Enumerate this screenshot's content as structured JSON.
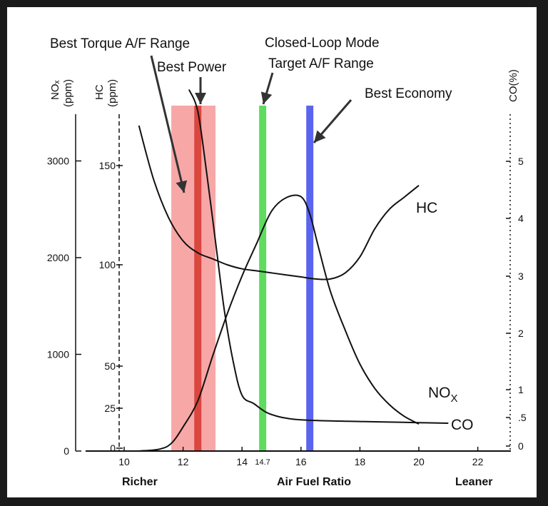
{
  "chart_data": {
    "type": "line",
    "x_axis": {
      "ticks": [
        10,
        12,
        14,
        16,
        18,
        20,
        22
      ],
      "stoich_tick": "14.7",
      "range": [
        10,
        23
      ],
      "label": "Air Fuel Ratio",
      "left_label": "Richer",
      "right_label": "Leaner"
    },
    "y_axes": [
      {
        "title": "NOx (ppm)",
        "ticks": [
          0,
          1000,
          2000,
          3000
        ]
      },
      {
        "title": "HC (ppm)",
        "ticks": [
          0,
          25,
          50,
          100,
          150
        ]
      },
      {
        "title": "CO(%)",
        "ticks": [
          0,
          0.5,
          1,
          2,
          3,
          4,
          5
        ]
      }
    ],
    "series": [
      {
        "name": "NOX",
        "axis": "NOx (ppm)",
        "x": [
          10.5,
          11.2,
          11.6,
          12.0,
          12.5,
          13.0,
          13.5,
          14.0,
          14.5,
          15.0,
          15.5,
          16.0,
          16.3,
          16.6,
          17.0,
          17.5,
          18.0,
          18.5,
          19.0,
          19.5,
          20.0
        ],
        "y": [
          0,
          20,
          80,
          250,
          520,
          980,
          1420,
          1810,
          2150,
          2480,
          2620,
          2630,
          2450,
          2100,
          1650,
          1250,
          900,
          650,
          480,
          360,
          280
        ]
      },
      {
        "name": "HC",
        "axis": "HC (ppm)",
        "x": [
          10.5,
          11.0,
          11.5,
          12.0,
          12.5,
          13.0,
          13.5,
          14.0,
          14.5,
          15.0,
          15.5,
          16.0,
          16.5,
          17.0,
          17.5,
          18.0,
          18.5,
          19.0,
          19.5,
          20.0
        ],
        "y": [
          170,
          143,
          124,
          112,
          106,
          103,
          100,
          98,
          97,
          96,
          95,
          94,
          93,
          93,
          96,
          104,
          118,
          128,
          134,
          140
        ]
      },
      {
        "name": "CO",
        "axis": "CO(%)",
        "x": [
          12.2,
          12.5,
          12.8,
          13.1,
          13.4,
          13.7,
          14.0,
          14.4,
          14.8,
          15.2,
          15.6,
          16.0,
          17.0,
          18.0,
          19.0,
          20.0,
          21.0
        ],
        "y": [
          6.3,
          5.9,
          4.8,
          3.6,
          2.4,
          1.5,
          0.9,
          0.75,
          0.6,
          0.52,
          0.48,
          0.46,
          0.44,
          0.43,
          0.42,
          0.41,
          0.4
        ]
      }
    ],
    "bands": [
      {
        "label": "Best Torque A/F Range",
        "x_start": 11.6,
        "x_end": 13.1,
        "color": "#f8a7a7"
      },
      {
        "label": "Best Power",
        "x": 12.5,
        "color": "#d9473f"
      },
      {
        "label": "Closed-Loop Mode Target A/F Range",
        "x": 14.7,
        "color": "#5fdc5f"
      },
      {
        "label": "Best Economy",
        "x": 16.3,
        "color": "#5b64ee"
      }
    ],
    "annotations": {
      "torque": "Best Torque A/F Range",
      "power": "Best Power",
      "closed_loop_1": "Closed-Loop Mode",
      "closed_loop_2": "Target A/F Range",
      "economy": "Best Economy",
      "nox_label": "NO",
      "nox_sub": "X",
      "hc_label": "HC",
      "co_label": "CO"
    },
    "axis_titles": {
      "nox_1": "NOₓ",
      "nox_2": "(ppm)",
      "hc_1": "HC",
      "hc_2": "(ppm)",
      "co": "CO(%)"
    }
  }
}
